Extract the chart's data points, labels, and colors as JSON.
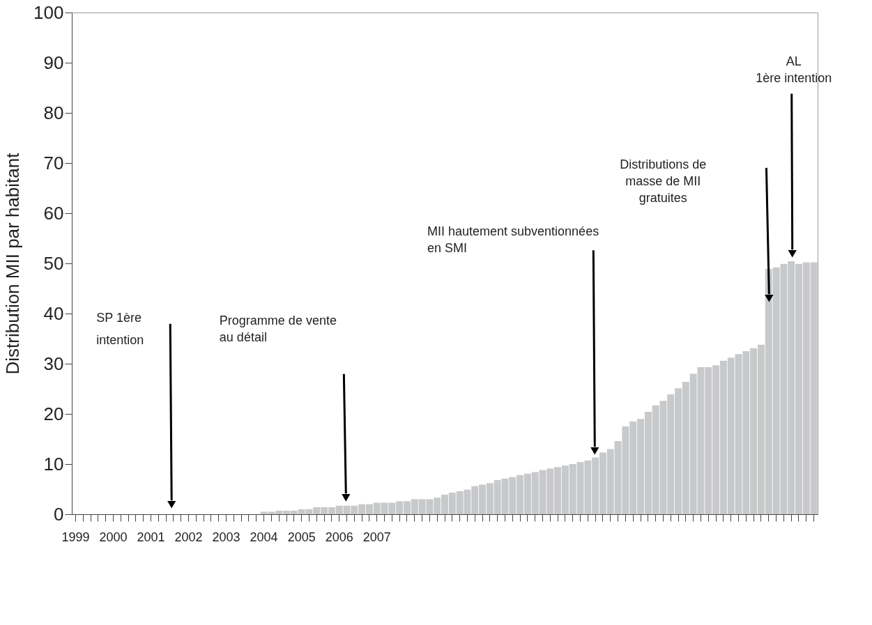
{
  "chart_data": {
    "type": "bar",
    "ylabel": "Distribution MII par habitant",
    "categories": [
      "1999",
      null,
      null,
      null,
      null,
      "2000",
      null,
      null,
      null,
      null,
      "2001",
      null,
      null,
      null,
      null,
      "2002",
      null,
      null,
      null,
      null,
      "2003",
      null,
      null,
      null,
      null,
      "2004",
      null,
      null,
      null,
      null,
      "2005",
      null,
      null,
      null,
      null,
      "2006",
      null,
      null,
      null,
      null,
      "2007",
      null,
      null,
      null,
      null,
      null,
      null,
      null,
      null,
      null,
      null,
      null,
      null,
      null,
      null,
      null,
      null,
      null,
      null,
      null,
      null,
      null,
      null,
      null,
      null,
      null,
      null,
      null,
      null,
      null,
      null,
      null,
      null,
      null,
      null,
      null,
      null,
      null,
      null,
      null,
      null,
      null,
      null,
      null,
      null,
      null,
      null,
      null,
      null,
      null,
      null,
      null,
      null,
      null,
      null,
      null,
      null,
      null,
      null
    ],
    "values": [
      0,
      0,
      0,
      0,
      0,
      0,
      0,
      0,
      0,
      0,
      0,
      0,
      0,
      0,
      0,
      0,
      0,
      0,
      0,
      0,
      0,
      0,
      0,
      0,
      0,
      0.5,
      0.5,
      0.7,
      0.7,
      0.7,
      1.0,
      1.0,
      1.4,
      1.4,
      1.4,
      1.7,
      1.7,
      1.7,
      2.0,
      2.0,
      2.3,
      2.3,
      2.3,
      2.6,
      2.6,
      3.0,
      3.0,
      3.0,
      3.3,
      3.9,
      4.3,
      4.6,
      4.9,
      5.6,
      5.9,
      6.2,
      6.8,
      7.1,
      7.4,
      7.8,
      8.1,
      8.4,
      8.8,
      9.1,
      9.4,
      9.7,
      10.0,
      10.4,
      10.7,
      11.3,
      12.3,
      13.0,
      14.6,
      17.5,
      18.5,
      19.0,
      20.4,
      21.7,
      22.6,
      23.9,
      25.1,
      26.4,
      28.0,
      29.3,
      29.3,
      29.7,
      30.6,
      31.2,
      31.9,
      32.5,
      33.1,
      33.8,
      48.9,
      49.2,
      49.9,
      50.4,
      49.9,
      50.2,
      50.2
    ],
    "color": "#c8c9cb",
    "ylim": [
      0,
      100
    ],
    "yticks": [
      0,
      10,
      20,
      30,
      40,
      50,
      60,
      70,
      80,
      90,
      100
    ],
    "grid": false,
    "annotations": [
      "SP 1ère\nintention",
      "Programme de vente\nau détail",
      "MII hautement subventionnées\nen SMI",
      "Distributions de\nmasse de MII\ngratuites",
      "AL\n1ère intention"
    ]
  }
}
